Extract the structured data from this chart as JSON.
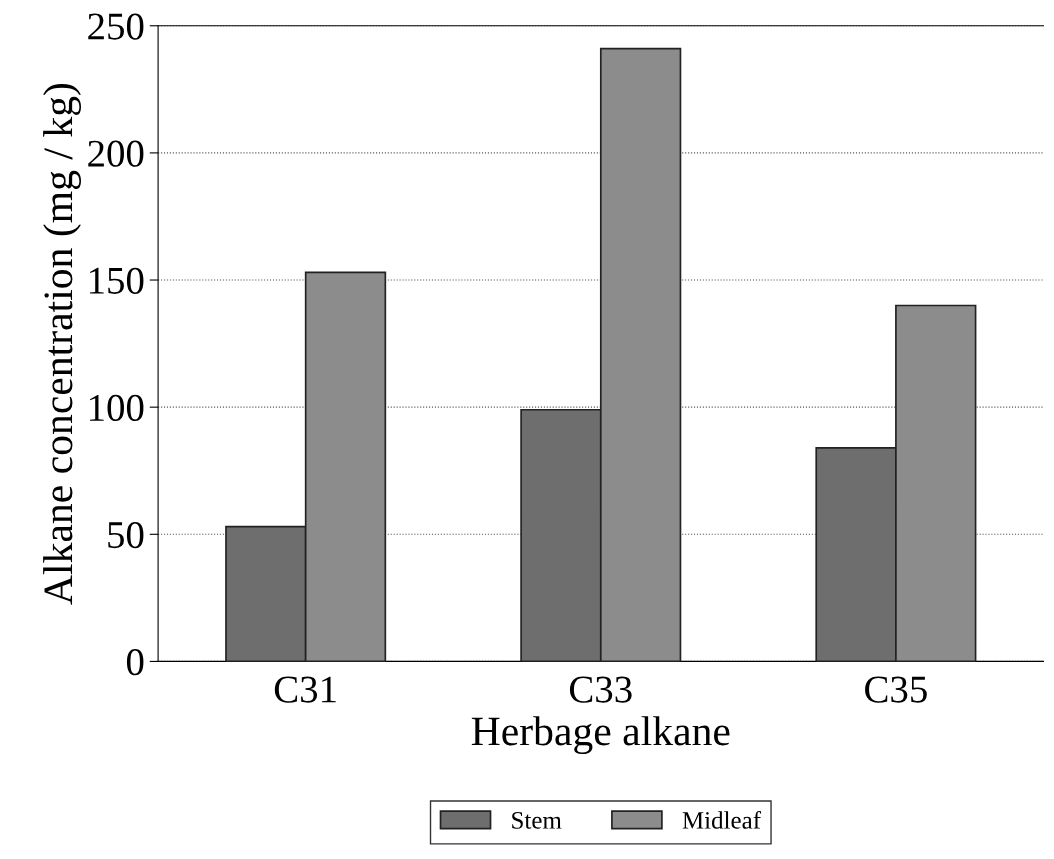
{
  "chart_data": {
    "type": "bar",
    "xlabel": "Herbage alkane",
    "ylabel": "Alkane concentration (mg / kg)",
    "categories": [
      "C31",
      "C33",
      "C35"
    ],
    "series": [
      {
        "name": "Stem",
        "color": "#6e6e6e",
        "values": [
          53,
          99,
          84
        ]
      },
      {
        "name": "Midleaf",
        "color": "#8c8c8c",
        "values": [
          153,
          241,
          140
        ]
      }
    ],
    "ylim": [
      0,
      250
    ],
    "yticks": [
      0,
      50,
      100,
      150,
      200,
      250
    ],
    "grid": "y",
    "legend": "bottom"
  }
}
